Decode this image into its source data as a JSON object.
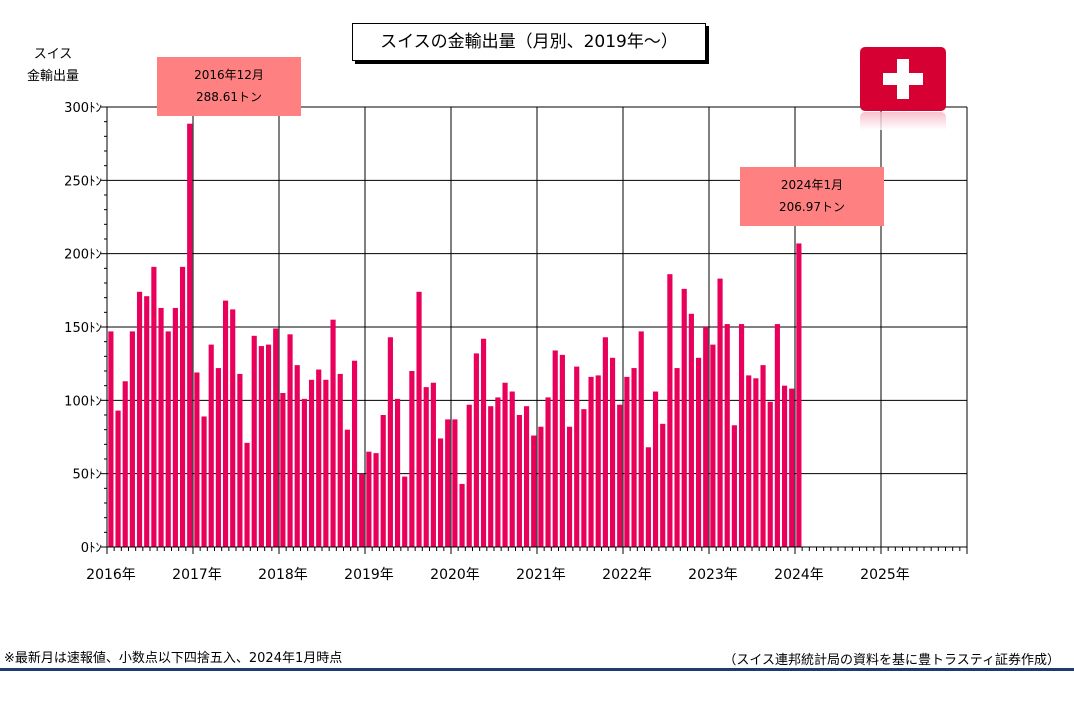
{
  "title": "スイスの金輸出量（月別、2019年～）",
  "ylabel": "スイス\n金輸出量",
  "callouts": [
    {
      "line1": "2016年12月",
      "line2": "288.61トン"
    },
    {
      "line1": "2024年1月",
      "line2": "206.97トン"
    }
  ],
  "footnote": "※最新月は速報値、小数点以下四捨五入、2024年1月時点",
  "source": "（スイス連邦統計局の資料を基に豊トラスティ証券作成）",
  "flag": {
    "background": "#d60032",
    "cross": "#ffffff",
    "icon": "swiss-flag-icon"
  },
  "chart_data": {
    "type": "bar",
    "bar_color": "#e8005a",
    "ylim": [
      0,
      300
    ],
    "y_ticks": [
      0,
      50,
      100,
      150,
      200,
      250,
      300
    ],
    "y_tick_labels": [
      "0ﾄﾝ",
      "50ﾄﾝ",
      "100ﾄﾝ",
      "150ﾄﾝ",
      "200ﾄﾝ",
      "250ﾄﾝ",
      "300ﾄﾝ"
    ],
    "x_tick_labels": [
      "2016年",
      "2017年",
      "2018年",
      "2019年",
      "2020年",
      "2021年",
      "2022年",
      "2023年",
      "2024年",
      "2025年"
    ],
    "start": "2016-01",
    "months_on_axis": 120,
    "grid": true,
    "values": [
      147,
      93,
      113,
      147,
      174,
      171,
      191,
      163,
      147,
      163,
      191,
      288.61,
      119,
      89,
      138,
      122,
      168,
      162,
      118,
      71,
      144,
      137,
      138,
      149,
      105,
      145,
      124,
      101,
      114,
      121,
      114,
      155,
      118,
      80,
      127,
      50,
      65,
      64,
      90,
      143,
      101,
      48,
      120,
      174,
      109,
      112,
      74,
      87,
      87,
      43,
      97,
      132,
      142,
      96,
      102,
      112,
      106,
      90,
      96,
      76,
      82,
      102,
      134,
      131,
      82,
      123,
      94,
      116,
      117,
      143,
      129,
      97,
      116,
      122,
      147,
      68,
      106,
      84,
      186,
      122,
      176,
      159,
      129,
      150,
      138,
      183,
      152,
      83,
      152,
      117,
      115,
      124,
      99,
      152,
      110,
      108,
      206.97
    ]
  }
}
